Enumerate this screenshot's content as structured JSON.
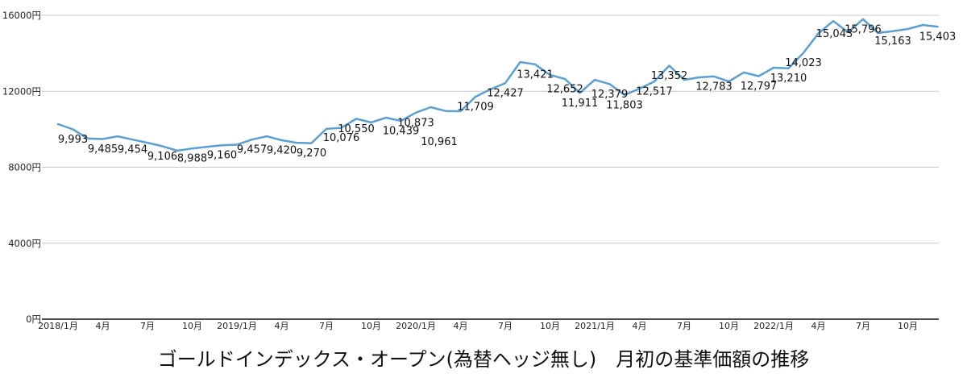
{
  "chart_data": {
    "type": "line",
    "title": "ゴールドインデックス・オープン(為替ヘッジ無し)　月初の基準価額の推移",
    "categories": [
      "2018/1月",
      "",
      "",
      "4月",
      "",
      "",
      "7月",
      "",
      "",
      "10月",
      "",
      "",
      "2019/1月",
      "",
      "",
      "4月",
      "",
      "",
      "7月",
      "",
      "",
      "10月",
      "",
      "",
      "2020/1月",
      "",
      "",
      "4月",
      "",
      "",
      "7月",
      "",
      "",
      "10月",
      "",
      "",
      "2021/1月",
      "",
      "",
      "4月",
      "",
      "",
      "7月",
      "",
      "",
      "10月",
      "",
      "",
      "2022/1月",
      "",
      "",
      "4月",
      "",
      "",
      "7月",
      "",
      "",
      "10月",
      "",
      ""
    ],
    "series": [
      {
        "color": "#5a9fd4",
        "values": [
          10270,
          9993,
          9510,
          9485,
          9630,
          9454,
          9290,
          9106,
          8870,
          8988,
          9080,
          9160,
          9190,
          9457,
          9630,
          9420,
          9290,
          9270,
          10020,
          10076,
          10550,
          10360,
          10610,
          10439,
          10873,
          11160,
          10961,
          10950,
          11709,
          12100,
          12427,
          13540,
          13421,
          12860,
          12652,
          11911,
          12600,
          12379,
          11803,
          12140,
          12517,
          13352,
          12600,
          12730,
          12783,
          12520,
          12990,
          12797,
          13240,
          13210,
          14023,
          15043,
          15700,
          15110,
          15796,
          15070,
          15163,
          15280,
          15490,
          15403
        ],
        "data_labels": [
          "",
          "9,993",
          "",
          "9,485",
          "",
          "9,454",
          "",
          "9,106",
          "",
          "8,988",
          "",
          "9,160",
          "",
          "9,457",
          "",
          "9,420",
          "",
          "9,270",
          "",
          "10,076",
          "10,550",
          "",
          "",
          "10,439",
          "10,873",
          "",
          "10,961",
          "",
          "11,709",
          "",
          "12,427",
          "",
          "13,421",
          "",
          "12,652",
          "11,911",
          "",
          "12,379",
          "11,803",
          "",
          "12,517",
          "13,352",
          "",
          "",
          "12,783",
          "",
          "",
          "12,797",
          "",
          "13,210",
          "14,023",
          "15,043",
          "",
          "",
          "15,796",
          "",
          "15,163",
          "",
          "",
          "15,403"
        ]
      }
    ],
    "ylim": [
      0,
      16000
    ],
    "yticks": [
      0,
      4000,
      8000,
      12000,
      16000
    ],
    "ytick_labels": [
      "0円",
      "4000円",
      "8000円",
      "12000円",
      "16000円"
    ],
    "grid": true
  }
}
